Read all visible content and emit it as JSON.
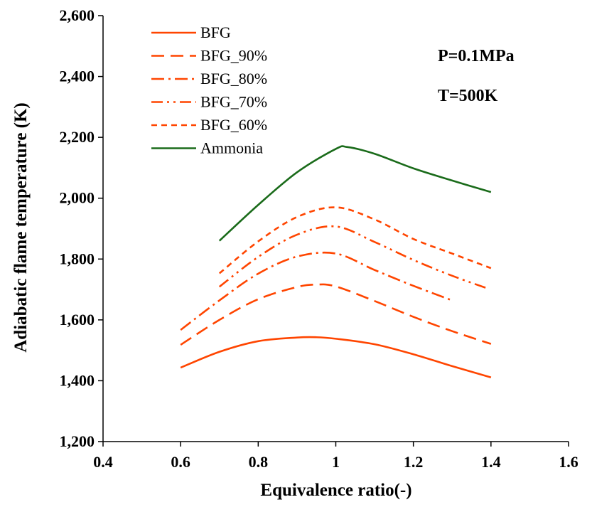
{
  "chart_data": {
    "type": "line",
    "title": "",
    "xlabel": "Equivalence ratio(-)",
    "ylabel": "Adiabatic flame temperature (K)",
    "xlim": [
      0.4,
      1.6
    ],
    "ylim": [
      1200,
      2600
    ],
    "x_ticks": [
      0.4,
      0.6,
      0.8,
      1.0,
      1.2,
      1.4,
      1.6
    ],
    "x_tick_labels": [
      "0.4",
      "0.6",
      "0.8",
      "1",
      "1.2",
      "1.4",
      "1.6"
    ],
    "y_ticks": [
      1200,
      1400,
      1600,
      1800,
      2000,
      2200,
      2400,
      2600
    ],
    "y_tick_labels": [
      "1,200",
      "1,400",
      "1,600",
      "1,800",
      "2,000",
      "2,200",
      "2,400",
      "2,600"
    ],
    "grid": false,
    "legend_position": "top-left",
    "annotations": [
      "P=0.1MPa",
      "T=500K"
    ],
    "series": [
      {
        "name": "BFG",
        "color": "#ff4500",
        "dash": "solid",
        "x": [
          0.6,
          0.7,
          0.8,
          0.9,
          0.95,
          1.0,
          1.1,
          1.2,
          1.3,
          1.4
        ],
        "y": [
          1443,
          1495,
          1530,
          1542,
          1543,
          1538,
          1520,
          1487,
          1448,
          1411
        ]
      },
      {
        "name": "BFG_90%",
        "color": "#ff4500",
        "dash": "long-dash",
        "x": [
          0.6,
          0.7,
          0.8,
          0.9,
          0.95,
          1.0,
          1.1,
          1.2,
          1.3,
          1.4
        ],
        "y": [
          1518,
          1600,
          1668,
          1708,
          1716,
          1710,
          1662,
          1610,
          1563,
          1521
        ]
      },
      {
        "name": "BFG_80%",
        "color": "#ff4500",
        "dash": "dash-dot",
        "x": [
          0.6,
          0.7,
          0.8,
          0.9,
          1.0,
          1.1,
          1.2,
          1.3
        ],
        "y": [
          1567,
          1664,
          1752,
          1808,
          1818,
          1764,
          1712,
          1664
        ]
      },
      {
        "name": "BFG_70%",
        "color": "#ff4500",
        "dash": "dash-dot-dot",
        "x": [
          0.7,
          0.8,
          0.9,
          1.0,
          1.1,
          1.2,
          1.3,
          1.39
        ],
        "y": [
          1709,
          1807,
          1880,
          1907,
          1856,
          1797,
          1745,
          1704
        ]
      },
      {
        "name": "BFG_60%",
        "color": "#ff4500",
        "dash": "short-dash",
        "x": [
          0.7,
          0.8,
          0.9,
          1.0,
          1.1,
          1.2,
          1.3,
          1.4
        ],
        "y": [
          1753,
          1858,
          1938,
          1970,
          1930,
          1866,
          1818,
          1770
        ]
      },
      {
        "name": "Ammonia",
        "color": "#1a6b1a",
        "dash": "solid",
        "x": [
          0.7,
          0.8,
          0.9,
          1.0,
          1.03,
          1.1,
          1.2,
          1.3,
          1.4
        ],
        "y": [
          1860,
          1978,
          2085,
          2162,
          2168,
          2146,
          2098,
          2058,
          2020
        ]
      }
    ]
  }
}
